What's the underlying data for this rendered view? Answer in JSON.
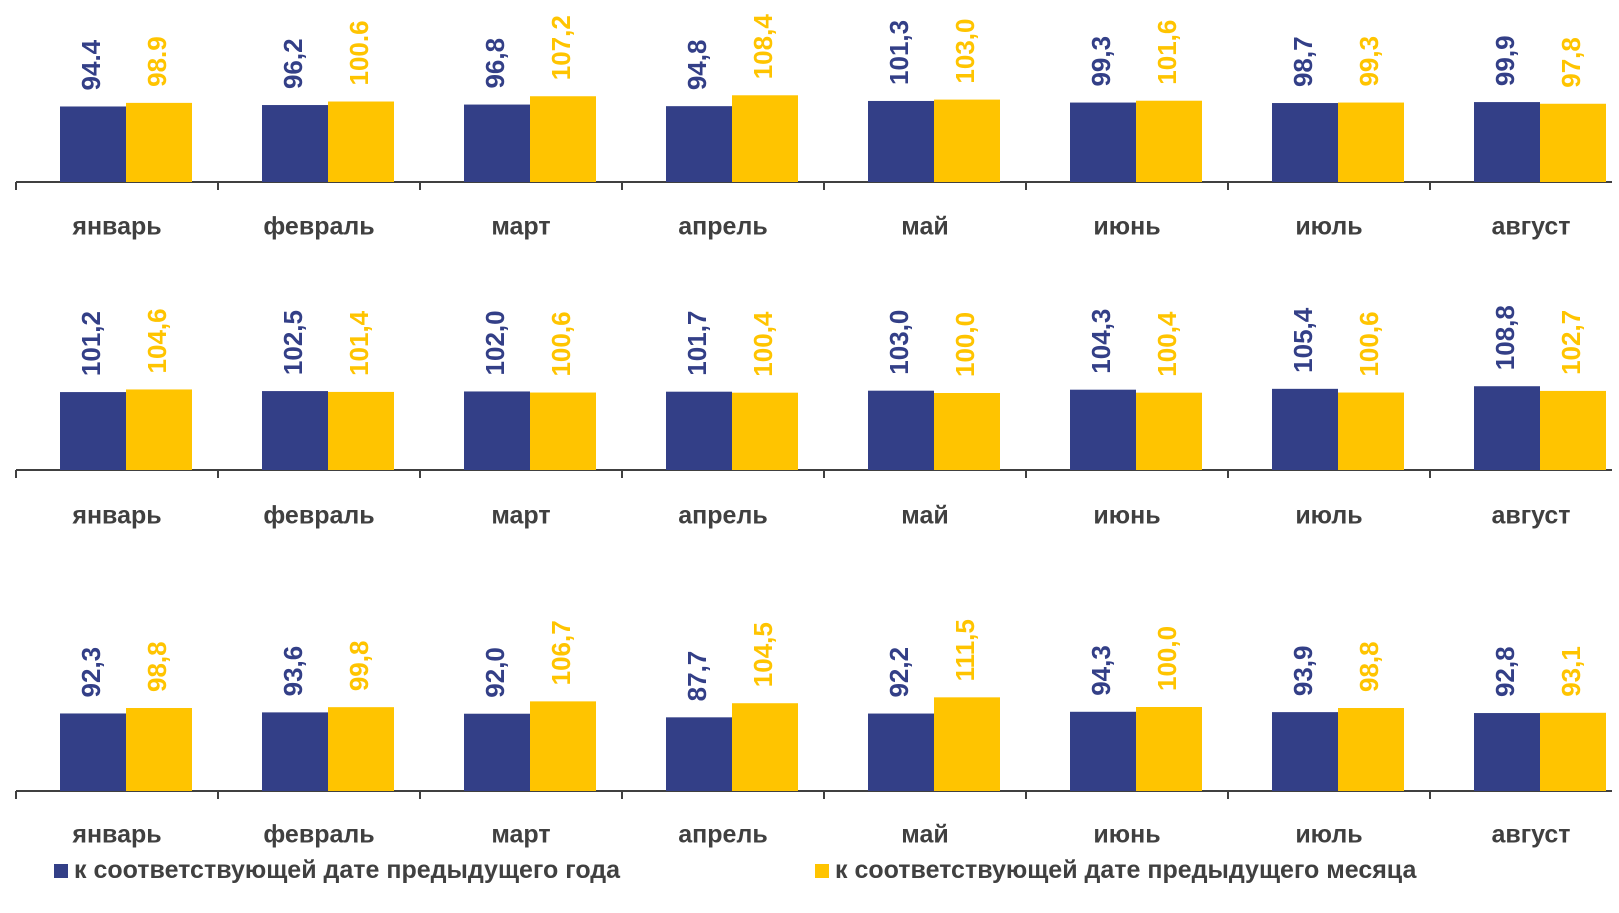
{
  "colors": {
    "prev_year": "#333F87",
    "prev_month": "#FFC400",
    "axis": "#404040",
    "label": "#404040"
  },
  "legend": {
    "prev_year": "к соответствующей дате предыдущего года",
    "prev_month": "к соответствующей дате предыдущего месяца"
  },
  "chart_data": [
    {
      "type": "bar",
      "categories": [
        "январь",
        "февраль",
        "март",
        "апрель",
        "май",
        "июнь",
        "июль",
        "август"
      ],
      "series": [
        {
          "name": "к соответствующей дате предыдущего года",
          "values": [
            94.4,
            96.2,
            96.8,
            94.8,
            101.3,
            99.3,
            98.7,
            99.9
          ],
          "labels": [
            "94.4",
            "96,2",
            "96,8",
            "94,8",
            "101,3",
            "99,3",
            "98,7",
            "99,9"
          ]
        },
        {
          "name": "к соответствующей дате предыдущего месяца",
          "values": [
            98.9,
            100.6,
            107.2,
            108.4,
            103.0,
            101.6,
            99.3,
            97.8
          ],
          "labels": [
            "98.9",
            "100.6",
            "107,2",
            "108,4",
            "103,0",
            "101,6",
            "99,3",
            "97,8"
          ]
        }
      ]
    },
    {
      "type": "bar",
      "categories": [
        "январь",
        "февраль",
        "март",
        "апрель",
        "май",
        "июнь",
        "июль",
        "август"
      ],
      "series": [
        {
          "name": "к соответствующей дате предыдущего года",
          "values": [
            101.2,
            102.5,
            102.0,
            101.7,
            103.0,
            104.3,
            105.4,
            108.8
          ],
          "labels": [
            "101,2",
            "102,5",
            "102,0",
            "101,7",
            "103,0",
            "104,3",
            "105,4",
            "108,8"
          ]
        },
        {
          "name": "к соответствующей дате предыдущего месяца",
          "values": [
            104.6,
            101.4,
            100.6,
            100.4,
            100.0,
            100.4,
            100.6,
            102.7
          ],
          "labels": [
            "104,6",
            "101,4",
            "100,6",
            "100,4",
            "100,0",
            "100,4",
            "100,6",
            "102,7"
          ]
        }
      ]
    },
    {
      "type": "bar",
      "categories": [
        "январь",
        "февраль",
        "март",
        "апрель",
        "май",
        "июнь",
        "июль",
        "август"
      ],
      "series": [
        {
          "name": "к соответствующей дате предыдущего года",
          "values": [
            92.3,
            93.6,
            92.0,
            87.7,
            92.2,
            94.3,
            93.9,
            92.8
          ],
          "labels": [
            "92,3",
            "93,6",
            "92,0",
            "87,7",
            "92,2",
            "94,3",
            "93,9",
            "92,8"
          ]
        },
        {
          "name": "к соответствующей дате предыдущего месяца",
          "values": [
            98.8,
            99.8,
            106.7,
            104.5,
            111.5,
            100.0,
            98.8,
            93.1
          ],
          "labels": [
            "98,8",
            "99,8",
            "106,7",
            "104,5",
            "111,5",
            "100,0",
            "98,8",
            "93,1"
          ]
        }
      ]
    }
  ]
}
